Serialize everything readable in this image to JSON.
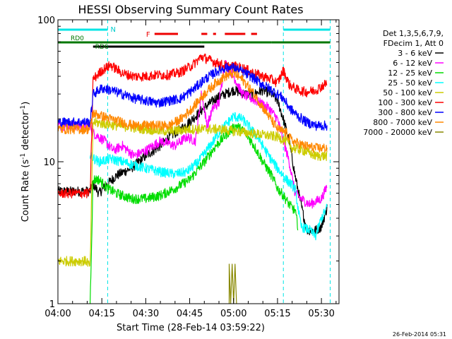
{
  "chart_data": {
    "type": "line",
    "title": "HESSI Observing Summary Count Rates",
    "xlabel": "Start Time (28-Feb-14 03:59:22)",
    "ylabel_main": "Count Rate (s",
    "ylabel_sup1": "-1",
    "ylabel_mid": " detector",
    "ylabel_sup2": "-1",
    "ylabel_end": ")",
    "yscale": "log",
    "ylim": [
      1,
      100
    ],
    "xlim_minutes": [
      0,
      96
    ],
    "x_ticks": [
      {
        "label": "04:00",
        "m": 0
      },
      {
        "label": "04:15",
        "m": 15
      },
      {
        "label": "04:30",
        "m": 30
      },
      {
        "label": "04:45",
        "m": 45
      },
      {
        "label": "05:00",
        "m": 60
      },
      {
        "label": "05:15",
        "m": 75
      },
      {
        "label": "05:30",
        "m": 90
      }
    ],
    "y_ticks": [
      {
        "label": "1",
        "v": 1
      },
      {
        "label": "10",
        "v": 10
      },
      {
        "label": "100",
        "v": 100
      }
    ],
    "legend": {
      "header": [
        "Det 1,3,5,6,7,9,",
        "FDecim 1, Att 0"
      ],
      "position": "right",
      "entries": [
        {
          "label": "3 - 6 keV",
          "color": "#000000"
        },
        {
          "label": "6 - 12 keV",
          "color": "#ff00ff"
        },
        {
          "label": "12 - 25 keV",
          "color": "#00dd00"
        },
        {
          "label": "25 - 50 keV",
          "color": "#00ffff"
        },
        {
          "label": "50 - 100 keV",
          "color": "#cccc00"
        },
        {
          "label": "100 - 300 keV",
          "color": "#ff0000"
        },
        {
          "label": "300 - 800 keV",
          "color": "#0000ff"
        },
        {
          "label": "800 - 7000 keV",
          "color": "#ff8800"
        },
        {
          "label": "7000 - 20000 keV",
          "color": "#888800"
        }
      ]
    },
    "series": [
      {
        "name": "3 - 6 keV",
        "color": "#000000",
        "points": [
          [
            0,
            6.2
          ],
          [
            11,
            6.2
          ],
          [
            12,
            7
          ],
          [
            14,
            6
          ],
          [
            17,
            7
          ],
          [
            20,
            8
          ],
          [
            25,
            9
          ],
          [
            30,
            11
          ],
          [
            35,
            13
          ],
          [
            38,
            15
          ],
          [
            42,
            17
          ],
          [
            46,
            20
          ],
          [
            50,
            24
          ],
          [
            54,
            28
          ],
          [
            57,
            30
          ],
          [
            60,
            32
          ],
          [
            64,
            30
          ],
          [
            67,
            30
          ],
          [
            70,
            32
          ],
          [
            73,
            30
          ],
          [
            75,
            27
          ],
          [
            77,
            20
          ],
          [
            79,
            14
          ],
          [
            81,
            8
          ],
          [
            83,
            5
          ],
          [
            85,
            3.3
          ],
          [
            88,
            3.3
          ],
          [
            90,
            3.5
          ],
          [
            92,
            4.8
          ]
        ]
      },
      {
        "name": "6 - 12 keV",
        "color": "#ff00ff",
        "points": [
          [
            0,
            18
          ],
          [
            11,
            18
          ],
          [
            12,
            16
          ],
          [
            16,
            14
          ],
          [
            19,
            12
          ],
          [
            22,
            13
          ],
          [
            26,
            11
          ],
          [
            30,
            12
          ],
          [
            35,
            14
          ],
          [
            40,
            13
          ],
          [
            44,
            15
          ],
          [
            47,
            14
          ],
          [
            49,
            30
          ],
          [
            51,
            18
          ],
          [
            53,
            24
          ],
          [
            55,
            26
          ],
          [
            57,
            50
          ],
          [
            60,
            40
          ],
          [
            63,
            30
          ],
          [
            66,
            28
          ],
          [
            69,
            26
          ],
          [
            72,
            24
          ],
          [
            75,
            20
          ],
          [
            77,
            14
          ],
          [
            79,
            10
          ],
          [
            81,
            6
          ],
          [
            83,
            5.5
          ],
          [
            86,
            5
          ],
          [
            90,
            5.5
          ],
          [
            92,
            6.8
          ]
        ]
      },
      {
        "name": "12 - 25 keV",
        "color": "#00dd00",
        "points": [
          [
            11,
            1
          ],
          [
            12,
            7.5
          ],
          [
            14,
            7.5
          ],
          [
            17,
            6.5
          ],
          [
            20,
            6
          ],
          [
            25,
            5.5
          ],
          [
            30,
            5.5
          ],
          [
            35,
            5.8
          ],
          [
            40,
            6.5
          ],
          [
            45,
            7.5
          ],
          [
            50,
            10
          ],
          [
            54,
            13
          ],
          [
            58,
            16
          ],
          [
            61,
            18
          ],
          [
            64,
            16
          ],
          [
            67,
            13
          ],
          [
            70,
            10
          ],
          [
            73,
            8
          ],
          [
            75,
            6.5
          ],
          [
            77,
            5.8
          ],
          [
            79,
            5
          ],
          [
            81,
            4.5
          ],
          [
            82,
            3.5
          ]
        ]
      },
      {
        "name": "25 - 50 keV",
        "color": "#00ffff",
        "points": [
          [
            11,
            11
          ],
          [
            14,
            10
          ],
          [
            18,
            10.5
          ],
          [
            22,
            10
          ],
          [
            26,
            9.5
          ],
          [
            30,
            9
          ],
          [
            35,
            8.5
          ],
          [
            40,
            8.2
          ],
          [
            44,
            8.5
          ],
          [
            48,
            10
          ],
          [
            52,
            13
          ],
          [
            56,
            17
          ],
          [
            60,
            21
          ],
          [
            63,
            20
          ],
          [
            66,
            17
          ],
          [
            69,
            14
          ],
          [
            72,
            11
          ],
          [
            75,
            9
          ],
          [
            78,
            7.5
          ],
          [
            81,
            6.5
          ],
          [
            83,
            3.5
          ],
          [
            86,
            3.3
          ],
          [
            88,
            3
          ],
          [
            90,
            4
          ],
          [
            92,
            4.8
          ]
        ]
      },
      {
        "name": "50 - 100 keV",
        "color": "#cccc00",
        "points": [
          [
            0,
            2
          ],
          [
            10,
            2
          ],
          [
            11,
            1.8
          ],
          [
            12,
            19
          ],
          [
            16,
            18.5
          ],
          [
            20,
            18
          ],
          [
            25,
            17.5
          ],
          [
            30,
            17
          ],
          [
            35,
            16.5
          ],
          [
            40,
            16.5
          ],
          [
            45,
            17
          ],
          [
            50,
            17
          ],
          [
            55,
            17
          ],
          [
            60,
            16.5
          ],
          [
            65,
            16
          ],
          [
            70,
            15.5
          ],
          [
            75,
            15
          ],
          [
            78,
            14
          ],
          [
            80,
            12.5
          ],
          [
            84,
            12
          ],
          [
            88,
            11
          ],
          [
            92,
            11
          ]
        ]
      },
      {
        "name": "100 - 300 keV",
        "color": "#ff0000",
        "points": [
          [
            0,
            6
          ],
          [
            11,
            6
          ],
          [
            12,
            38
          ],
          [
            15,
            44
          ],
          [
            18,
            48
          ],
          [
            22,
            42
          ],
          [
            26,
            40
          ],
          [
            30,
            40
          ],
          [
            34,
            41
          ],
          [
            38,
            41
          ],
          [
            42,
            43
          ],
          [
            46,
            48
          ],
          [
            49,
            55
          ],
          [
            52,
            52
          ],
          [
            55,
            49
          ],
          [
            58,
            47
          ],
          [
            61,
            47
          ],
          [
            64,
            45
          ],
          [
            67,
            42
          ],
          [
            70,
            40
          ],
          [
            73,
            38
          ],
          [
            75,
            36
          ],
          [
            77,
            44
          ],
          [
            79,
            35
          ],
          [
            82,
            32
          ],
          [
            85,
            31
          ],
          [
            88,
            32
          ],
          [
            92,
            36
          ]
        ]
      },
      {
        "name": "300 - 800 keV",
        "color": "#0000ff",
        "points": [
          [
            0,
            19
          ],
          [
            11,
            19
          ],
          [
            12,
            30
          ],
          [
            15,
            33
          ],
          [
            18,
            32
          ],
          [
            22,
            30
          ],
          [
            26,
            28
          ],
          [
            30,
            27
          ],
          [
            34,
            26
          ],
          [
            38,
            27
          ],
          [
            42,
            28
          ],
          [
            46,
            32
          ],
          [
            50,
            38
          ],
          [
            54,
            43
          ],
          [
            57,
            46
          ],
          [
            60,
            46
          ],
          [
            63,
            43
          ],
          [
            66,
            40
          ],
          [
            69,
            36
          ],
          [
            72,
            33
          ],
          [
            75,
            30
          ],
          [
            77,
            28
          ],
          [
            79,
            24
          ],
          [
            82,
            21
          ],
          [
            85,
            19
          ],
          [
            88,
            18
          ],
          [
            92,
            18
          ]
        ]
      },
      {
        "name": "800 - 7000 keV",
        "color": "#ff8800",
        "points": [
          [
            0,
            17
          ],
          [
            11,
            17
          ],
          [
            12,
            22
          ],
          [
            15,
            21
          ],
          [
            18,
            20
          ],
          [
            22,
            19
          ],
          [
            26,
            18
          ],
          [
            30,
            18
          ],
          [
            34,
            18
          ],
          [
            38,
            18
          ],
          [
            42,
            20
          ],
          [
            46,
            24
          ],
          [
            50,
            30
          ],
          [
            54,
            36
          ],
          [
            57,
            40
          ],
          [
            60,
            42
          ],
          [
            63,
            38
          ],
          [
            66,
            32
          ],
          [
            69,
            26
          ],
          [
            72,
            21
          ],
          [
            75,
            17
          ],
          [
            78,
            16
          ],
          [
            80,
            14
          ],
          [
            84,
            13
          ],
          [
            88,
            12.5
          ],
          [
            92,
            12.5
          ]
        ]
      },
      {
        "name": "7000 - 20000 keV",
        "color": "#888800",
        "points": [
          [
            58.5,
            1
          ],
          [
            58.5,
            1.9
          ],
          [
            59,
            1
          ],
          [
            59.5,
            1.9
          ],
          [
            60,
            1
          ],
          [
            60.5,
            1.9
          ],
          [
            61,
            1
          ]
        ]
      }
    ],
    "annotations": {
      "cyan_bars": [
        {
          "m0": 0,
          "m1": 17,
          "label": "N"
        },
        {
          "m0": 77,
          "m1": 93,
          "label": ""
        }
      ],
      "red_bars": {
        "label": "F",
        "segments": [
          [
            33,
            41
          ],
          [
            49,
            51
          ],
          [
            53,
            54
          ],
          [
            57,
            64
          ],
          [
            66,
            68
          ]
        ]
      },
      "green_bars": [
        {
          "m0": 0,
          "m1": 49,
          "label": "RD0"
        },
        {
          "m0": 49,
          "m1": 73,
          "label": ""
        },
        {
          "m0": 73,
          "m1": 93,
          "label": ""
        }
      ],
      "black_bar": {
        "m0": 12,
        "m1": 50,
        "label": "RD6"
      },
      "cyan_vlines": [
        17,
        77,
        93
      ]
    }
  },
  "footer_timestamp": "26-Feb-2014 05:31"
}
